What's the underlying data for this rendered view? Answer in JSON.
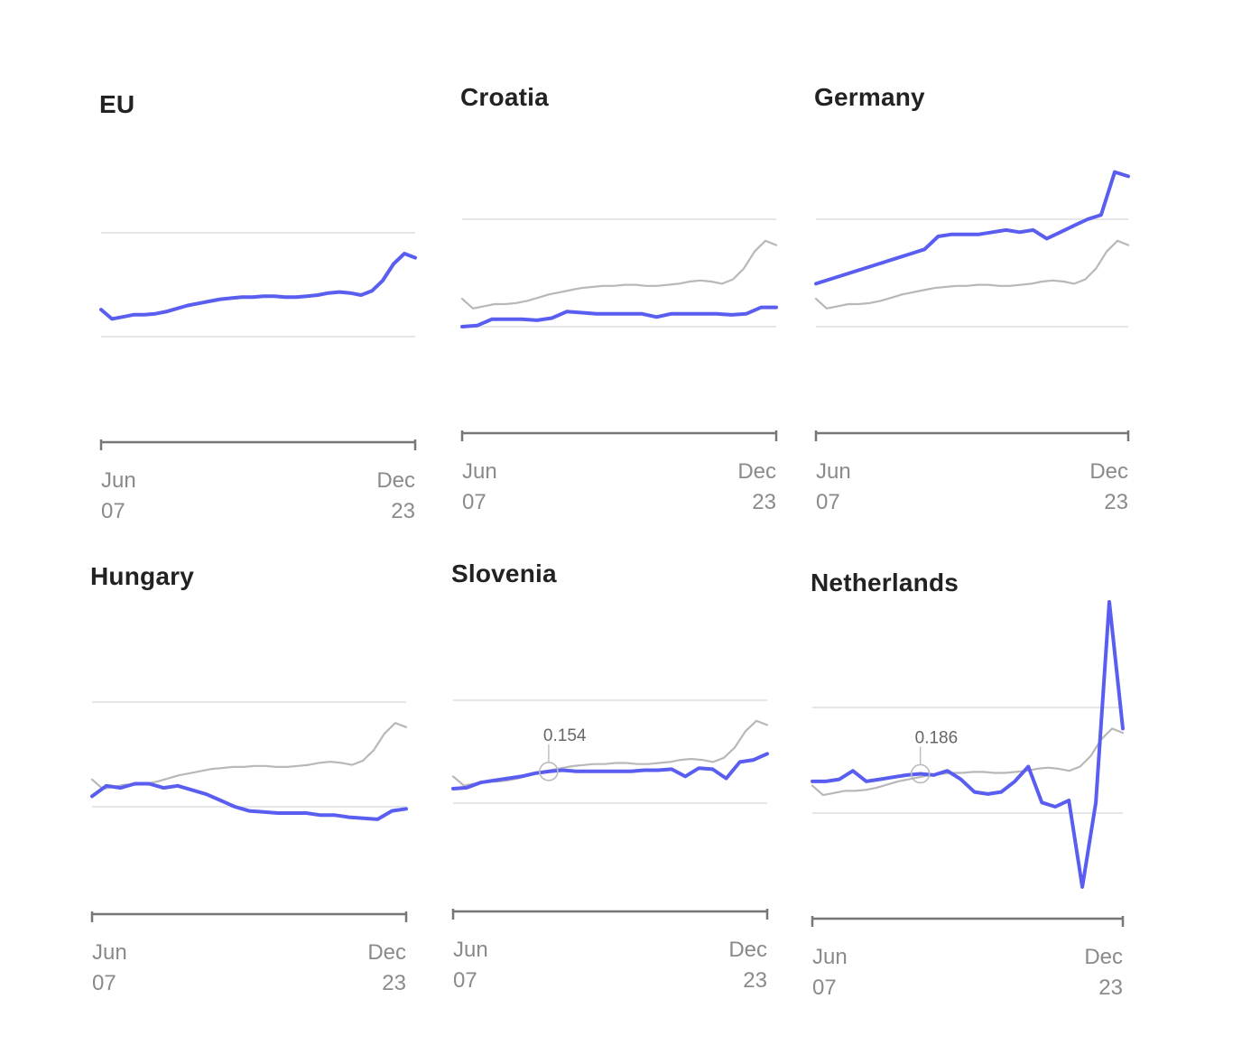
{
  "colors": {
    "country": "#5a5ef0",
    "eu": "#b8b8b8",
    "grid": "#e6e6e6",
    "axis": "#777777",
    "tick_text": "#8a8a8a"
  },
  "chart_data": [
    {
      "type": "line",
      "title": "EU",
      "x_ticks": [
        {
          "month": "Jun",
          "year": "07"
        },
        {
          "month": "Dec",
          "year": "23"
        }
      ],
      "series": [
        {
          "role": "country",
          "values": [
            0.13,
            0.085,
            0.095,
            0.105,
            0.105,
            0.11,
            0.12,
            0.135,
            0.15,
            0.16,
            0.17,
            0.18,
            0.185,
            0.19,
            0.19,
            0.195,
            0.195,
            0.19,
            0.19,
            0.195,
            0.2,
            0.21,
            0.215,
            0.21,
            0.2,
            0.22,
            0.27,
            0.35,
            0.4,
            0.38
          ]
        }
      ]
    },
    {
      "type": "line",
      "title": "Croatia",
      "x_ticks": [
        {
          "month": "Jun",
          "year": "07"
        },
        {
          "month": "Dec",
          "year": "23"
        }
      ],
      "series": [
        {
          "role": "eu",
          "values": [
            0.13,
            0.085,
            0.095,
            0.105,
            0.105,
            0.11,
            0.12,
            0.135,
            0.15,
            0.16,
            0.17,
            0.18,
            0.185,
            0.19,
            0.19,
            0.195,
            0.195,
            0.19,
            0.19,
            0.195,
            0.2,
            0.21,
            0.215,
            0.21,
            0.2,
            0.22,
            0.27,
            0.35,
            0.4,
            0.38
          ]
        },
        {
          "role": "country",
          "values": [
            0.0,
            0.005,
            0.035,
            0.035,
            0.035,
            0.03,
            0.04,
            0.07,
            0.065,
            0.06,
            0.06,
            0.06,
            0.06,
            0.045,
            0.06,
            0.06,
            0.06,
            0.06,
            0.055,
            0.06,
            0.09,
            0.09
          ]
        }
      ]
    },
    {
      "type": "line",
      "title": "Germany",
      "x_ticks": [
        {
          "month": "Jun",
          "year": "07"
        },
        {
          "month": "Dec",
          "year": "23"
        }
      ],
      "series": [
        {
          "role": "eu",
          "values": [
            0.13,
            0.085,
            0.095,
            0.105,
            0.105,
            0.11,
            0.12,
            0.135,
            0.15,
            0.16,
            0.17,
            0.18,
            0.185,
            0.19,
            0.19,
            0.195,
            0.195,
            0.19,
            0.19,
            0.195,
            0.2,
            0.21,
            0.215,
            0.21,
            0.2,
            0.22,
            0.27,
            0.35,
            0.4,
            0.38
          ]
        },
        {
          "role": "country",
          "values": [
            0.2,
            0.22,
            0.24,
            0.26,
            0.28,
            0.3,
            0.32,
            0.34,
            0.36,
            0.42,
            0.43,
            0.43,
            0.43,
            0.44,
            0.45,
            0.44,
            0.45,
            0.41,
            0.44,
            0.47,
            0.5,
            0.52,
            0.72,
            0.7
          ]
        }
      ]
    },
    {
      "type": "line",
      "title": "Hungary",
      "x_ticks": [
        {
          "month": "Jun",
          "year": "07"
        },
        {
          "month": "Dec",
          "year": "23"
        }
      ],
      "series": [
        {
          "role": "eu",
          "values": [
            0.13,
            0.085,
            0.095,
            0.105,
            0.105,
            0.11,
            0.12,
            0.135,
            0.15,
            0.16,
            0.17,
            0.18,
            0.185,
            0.19,
            0.19,
            0.195,
            0.195,
            0.19,
            0.19,
            0.195,
            0.2,
            0.21,
            0.215,
            0.21,
            0.2,
            0.22,
            0.27,
            0.35,
            0.4,
            0.38
          ]
        },
        {
          "role": "country",
          "values": [
            0.05,
            0.1,
            0.09,
            0.11,
            0.11,
            0.09,
            0.1,
            0.08,
            0.06,
            0.03,
            0.0,
            -0.02,
            -0.025,
            -0.03,
            -0.03,
            -0.03,
            -0.04,
            -0.04,
            -0.05,
            -0.055,
            -0.06,
            -0.02,
            -0.01
          ]
        }
      ]
    },
    {
      "type": "line",
      "title": "Slovenia",
      "x_ticks": [
        {
          "month": "Jun",
          "year": "07"
        },
        {
          "month": "Dec",
          "year": "23"
        }
      ],
      "annotations": [
        {
          "label": "0.154",
          "value": 0.154
        }
      ],
      "series": [
        {
          "role": "eu",
          "values": [
            0.13,
            0.085,
            0.095,
            0.105,
            0.105,
            0.11,
            0.12,
            0.135,
            0.15,
            0.16,
            0.17,
            0.18,
            0.185,
            0.19,
            0.19,
            0.195,
            0.195,
            0.19,
            0.19,
            0.195,
            0.2,
            0.21,
            0.215,
            0.21,
            0.2,
            0.22,
            0.27,
            0.35,
            0.4,
            0.38
          ]
        },
        {
          "role": "country",
          "values": [
            0.07,
            0.075,
            0.1,
            0.11,
            0.12,
            0.13,
            0.145,
            0.154,
            0.16,
            0.155,
            0.155,
            0.155,
            0.155,
            0.155,
            0.16,
            0.16,
            0.165,
            0.13,
            0.17,
            0.165,
            0.12,
            0.2,
            0.21,
            0.24
          ]
        }
      ]
    },
    {
      "type": "line",
      "title": "Netherlands",
      "x_ticks": [
        {
          "month": "Jun",
          "year": "07"
        },
        {
          "month": "Dec",
          "year": "23"
        }
      ],
      "annotations": [
        {
          "label": "0.186",
          "value": 0.186
        }
      ],
      "series": [
        {
          "role": "eu",
          "values": [
            0.13,
            0.085,
            0.095,
            0.105,
            0.105,
            0.11,
            0.12,
            0.135,
            0.15,
            0.16,
            0.17,
            0.18,
            0.185,
            0.19,
            0.19,
            0.195,
            0.195,
            0.19,
            0.19,
            0.195,
            0.2,
            0.21,
            0.215,
            0.21,
            0.2,
            0.22,
            0.27,
            0.35,
            0.4,
            0.38
          ]
        },
        {
          "role": "country",
          "values": [
            0.15,
            0.15,
            0.16,
            0.2,
            0.15,
            0.16,
            0.17,
            0.18,
            0.186,
            0.18,
            0.2,
            0.16,
            0.1,
            0.09,
            0.1,
            0.15,
            0.22,
            0.05,
            0.03,
            0.06,
            -0.35,
            0.05,
            1.0,
            0.4
          ]
        }
      ]
    }
  ]
}
